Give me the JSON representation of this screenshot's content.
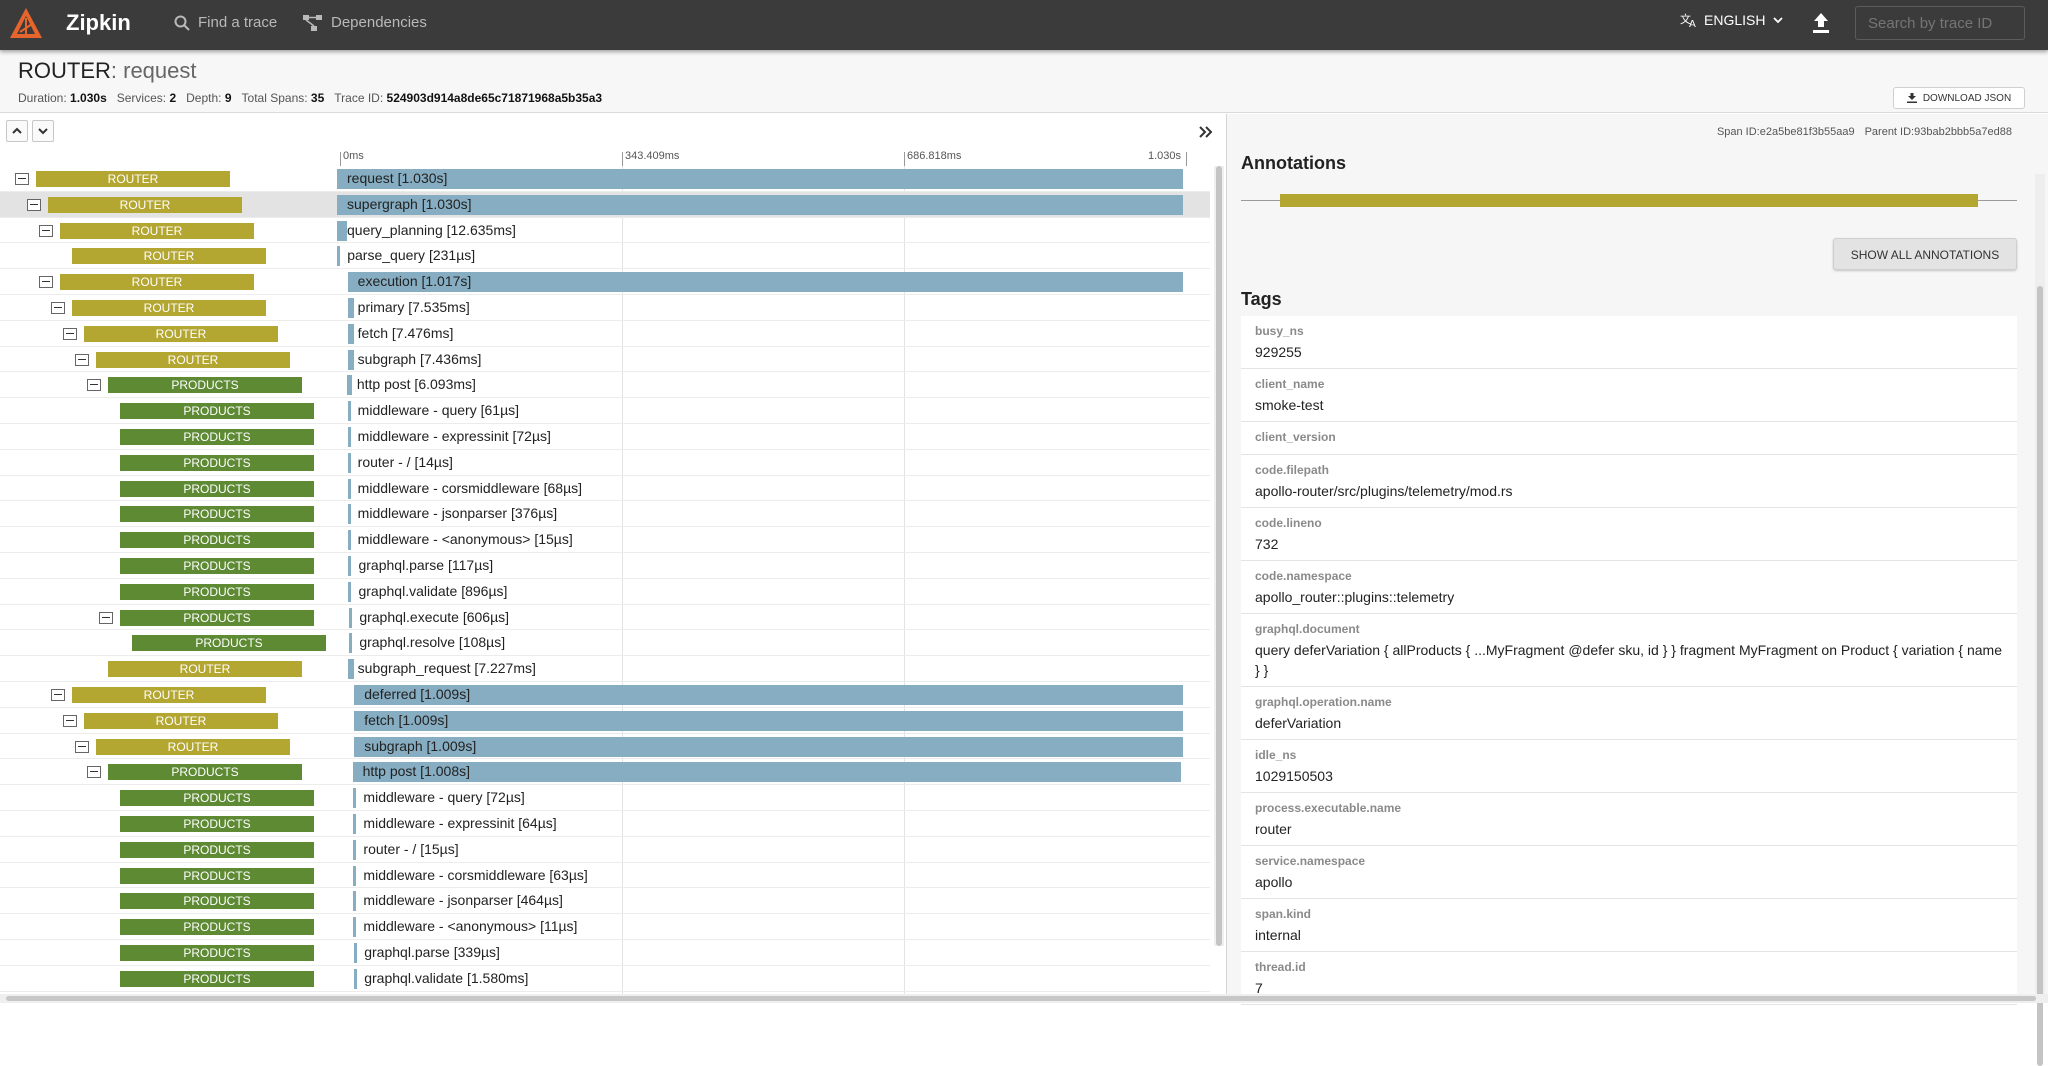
{
  "app": {
    "brand": "Zipkin"
  },
  "nav": {
    "find_trace": "Find a trace",
    "dependencies": "Dependencies",
    "language": "ENGLISH",
    "search_placeholder": "Search by trace ID"
  },
  "trace": {
    "service": "ROUTER",
    "operation": ": request",
    "stats": [
      {
        "label": "Duration:",
        "value": "1.030s"
      },
      {
        "label": "Services:",
        "value": "2"
      },
      {
        "label": "Depth:",
        "value": "9"
      },
      {
        "label": "Total Spans:",
        "value": "35"
      },
      {
        "label": "Trace ID:",
        "value": "524903d914a8de65c71871968a5b35a3"
      }
    ],
    "download_label": "DOWNLOAD JSON"
  },
  "timeline": {
    "ticks": [
      "0ms",
      "343.409ms",
      "686.818ms",
      "1.030s"
    ],
    "total_ms": 1030,
    "spans": [
      {
        "service": "ROUTER",
        "label": "request [1.030s]",
        "depth": 0,
        "toggle": true,
        "start_ms": 0,
        "dur_ms": 1030
      },
      {
        "service": "ROUTER",
        "label": "supergraph [1.030s]",
        "depth": 1,
        "toggle": true,
        "start_ms": 0,
        "dur_ms": 1030,
        "selected": true
      },
      {
        "service": "ROUTER",
        "label": "query_planning [12.635ms]",
        "depth": 2,
        "toggle": true,
        "start_ms": 0,
        "dur_ms": 12.635
      },
      {
        "service": "ROUTER",
        "label": "parse_query [231µs]",
        "depth": 3,
        "toggle": false,
        "start_ms": 0.3,
        "dur_ms": 0.231
      },
      {
        "service": "ROUTER",
        "label": "execution [1.017s]",
        "depth": 2,
        "toggle": true,
        "start_ms": 13,
        "dur_ms": 1017
      },
      {
        "service": "ROUTER",
        "label": "primary [7.535ms]",
        "depth": 3,
        "toggle": true,
        "start_ms": 13,
        "dur_ms": 7.535
      },
      {
        "service": "ROUTER",
        "label": "fetch [7.476ms]",
        "depth": 4,
        "toggle": true,
        "start_ms": 13,
        "dur_ms": 7.476
      },
      {
        "service": "ROUTER",
        "label": "subgraph [7.436ms]",
        "depth": 5,
        "toggle": true,
        "start_ms": 13,
        "dur_ms": 7.436
      },
      {
        "service": "PRODUCTS",
        "label": "http post [6.093ms]",
        "depth": 6,
        "toggle": true,
        "start_ms": 12,
        "dur_ms": 6.093
      },
      {
        "service": "PRODUCTS",
        "label": "middleware - query [61µs]",
        "depth": 7,
        "toggle": false,
        "start_ms": 13,
        "dur_ms": 0.061
      },
      {
        "service": "PRODUCTS",
        "label": "middleware - expressinit [72µs]",
        "depth": 7,
        "toggle": false,
        "start_ms": 13,
        "dur_ms": 0.072
      },
      {
        "service": "PRODUCTS",
        "label": "router - / [14µs]",
        "depth": 7,
        "toggle": false,
        "start_ms": 13,
        "dur_ms": 0.014
      },
      {
        "service": "PRODUCTS",
        "label": "middleware - corsmiddleware [68µs]",
        "depth": 7,
        "toggle": false,
        "start_ms": 13,
        "dur_ms": 0.068
      },
      {
        "service": "PRODUCTS",
        "label": "middleware - jsonparser [376µs]",
        "depth": 7,
        "toggle": false,
        "start_ms": 13,
        "dur_ms": 0.376
      },
      {
        "service": "PRODUCTS",
        "label": "middleware - <anonymous> [15µs]",
        "depth": 7,
        "toggle": false,
        "start_ms": 13,
        "dur_ms": 0.015
      },
      {
        "service": "PRODUCTS",
        "label": "graphql.parse [117µs]",
        "depth": 7,
        "toggle": false,
        "start_ms": 14,
        "dur_ms": 0.117
      },
      {
        "service": "PRODUCTS",
        "label": "graphql.validate [896µs]",
        "depth": 7,
        "toggle": false,
        "start_ms": 14,
        "dur_ms": 0.896
      },
      {
        "service": "PRODUCTS",
        "label": "graphql.execute [606µs]",
        "depth": 7,
        "toggle": true,
        "start_ms": 15,
        "dur_ms": 0.606
      },
      {
        "service": "PRODUCTS",
        "label": "graphql.resolve [108µs]",
        "depth": 8,
        "toggle": false,
        "start_ms": 15,
        "dur_ms": 0.108
      },
      {
        "service": "ROUTER",
        "label": "subgraph_request [7.227ms]",
        "depth": 6,
        "toggle": false,
        "start_ms": 13,
        "dur_ms": 7.227
      },
      {
        "service": "ROUTER",
        "label": "deferred [1.009s]",
        "depth": 3,
        "toggle": true,
        "start_ms": 21,
        "dur_ms": 1009
      },
      {
        "service": "ROUTER",
        "label": "fetch [1.009s]",
        "depth": 4,
        "toggle": true,
        "start_ms": 21,
        "dur_ms": 1009
      },
      {
        "service": "ROUTER",
        "label": "subgraph [1.009s]",
        "depth": 5,
        "toggle": true,
        "start_ms": 21,
        "dur_ms": 1009
      },
      {
        "service": "PRODUCTS",
        "label": "http post [1.008s]",
        "depth": 6,
        "toggle": true,
        "start_ms": 19,
        "dur_ms": 1008
      },
      {
        "service": "PRODUCTS",
        "label": "middleware - query [72µs]",
        "depth": 7,
        "toggle": false,
        "start_ms": 20,
        "dur_ms": 0.072
      },
      {
        "service": "PRODUCTS",
        "label": "middleware - expressinit [64µs]",
        "depth": 7,
        "toggle": false,
        "start_ms": 20,
        "dur_ms": 0.064
      },
      {
        "service": "PRODUCTS",
        "label": "router - / [15µs]",
        "depth": 7,
        "toggle": false,
        "start_ms": 20,
        "dur_ms": 0.015
      },
      {
        "service": "PRODUCTS",
        "label": "middleware - corsmiddleware [63µs]",
        "depth": 7,
        "toggle": false,
        "start_ms": 20,
        "dur_ms": 0.063
      },
      {
        "service": "PRODUCTS",
        "label": "middleware - jsonparser [464µs]",
        "depth": 7,
        "toggle": false,
        "start_ms": 20,
        "dur_ms": 0.464
      },
      {
        "service": "PRODUCTS",
        "label": "middleware - <anonymous> [11µs]",
        "depth": 7,
        "toggle": false,
        "start_ms": 20,
        "dur_ms": 0.011
      },
      {
        "service": "PRODUCTS",
        "label": "graphql.parse [339µs]",
        "depth": 7,
        "toggle": false,
        "start_ms": 21,
        "dur_ms": 0.339
      },
      {
        "service": "PRODUCTS",
        "label": "graphql.validate [1.580ms]",
        "depth": 7,
        "toggle": false,
        "start_ms": 21,
        "dur_ms": 1.58
      }
    ]
  },
  "detail": {
    "span_id_label": "Span ID:",
    "span_id": "e2a5be81f3b55aa9",
    "parent_id_label": "Parent ID:",
    "parent_id": "93bab2bbb5a7ed88",
    "annotations_title": "Annotations",
    "show_all_label": "SHOW ALL ANNOTATIONS",
    "tags_title": "Tags",
    "tags": [
      {
        "key": "busy_ns",
        "value": "929255"
      },
      {
        "key": "client_name",
        "value": "smoke-test"
      },
      {
        "key": "client_version",
        "value": ""
      },
      {
        "key": "code.filepath",
        "value": "apollo-router/src/plugins/telemetry/mod.rs"
      },
      {
        "key": "code.lineno",
        "value": "732"
      },
      {
        "key": "code.namespace",
        "value": "apollo_router::plugins::telemetry"
      },
      {
        "key": "graphql.document",
        "value": "query deferVariation { allProducts { ...MyFragment @defer sku, id } } fragment MyFragment on Product { variation { name } }"
      },
      {
        "key": "graphql.operation.name",
        "value": "deferVariation"
      },
      {
        "key": "idle_ns",
        "value": "1029150503"
      },
      {
        "key": "process.executable.name",
        "value": "router"
      },
      {
        "key": "service.namespace",
        "value": "apollo"
      },
      {
        "key": "span.kind",
        "value": "internal"
      },
      {
        "key": "thread.id",
        "value": "7"
      }
    ]
  },
  "colors": {
    "router": "#b3a631",
    "products": "#5e8a34",
    "span_bar": "#86adc1",
    "accent": "#e8642d"
  }
}
